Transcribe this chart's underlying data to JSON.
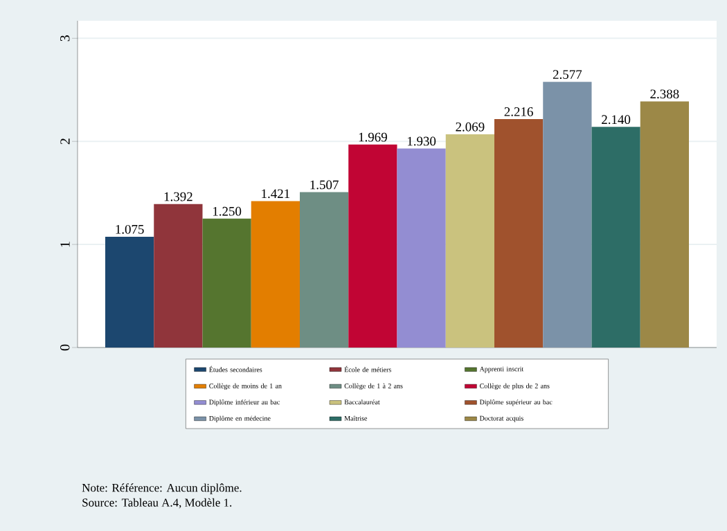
{
  "chart_data": {
    "type": "bar",
    "categories": [
      null
    ],
    "series": [
      {
        "name": "Études secondaires",
        "color": "#1c476f",
        "values": [
          1.075
        ],
        "value_labels": [
          "1.075"
        ]
      },
      {
        "name": "École de métiers",
        "color": "#90353b",
        "values": [
          1.392
        ],
        "value_labels": [
          "1.392"
        ]
      },
      {
        "name": "Apprenti inscrit",
        "color": "#55752f",
        "values": [
          1.25
        ],
        "value_labels": [
          "1.250"
        ]
      },
      {
        "name": "Collège de moins de 1 an",
        "color": "#e37e00",
        "values": [
          1.421
        ],
        "value_labels": [
          "1.421"
        ]
      },
      {
        "name": "Collège de 1 à 2 ans",
        "color": "#6e8e84",
        "values": [
          1.507
        ],
        "value_labels": [
          "1.507"
        ]
      },
      {
        "name": "Collège de plus de 2 ans",
        "color": "#c10534",
        "values": [
          1.969
        ],
        "value_labels": [
          "1.969"
        ]
      },
      {
        "name": "Diplôme inférieur au bac",
        "color": "#938dd2",
        "values": [
          1.93
        ],
        "value_labels": [
          "1.930"
        ]
      },
      {
        "name": "Baccalauréat",
        "color": "#cac27e",
        "values": [
          2.069
        ],
        "value_labels": [
          "2.069"
        ]
      },
      {
        "name": "Diplôme supérieur au bac",
        "color": "#a0522d",
        "values": [
          2.216
        ],
        "value_labels": [
          "2.216"
        ]
      },
      {
        "name": "Diplôme en médecine",
        "color": "#7b92a8",
        "values": [
          2.577
        ],
        "value_labels": [
          "2.577"
        ]
      },
      {
        "name": "Maîtrise",
        "color": "#2d6d66",
        "values": [
          2.14
        ],
        "value_labels": [
          "2.140"
        ]
      },
      {
        "name": "Doctorat acquis",
        "color": "#9c8847",
        "values": [
          2.388
        ],
        "value_labels": [
          "2.388"
        ]
      }
    ],
    "ylim": [
      0,
      3.17
    ],
    "yticks": [
      0,
      1,
      2,
      3
    ],
    "grid": "y",
    "legend": "bottom",
    "tick_labels": "y",
    "annotations": [
      "Note: Référence: Aucun diplôme.",
      "Source: Tableau A.4, Modèle 1."
    ]
  }
}
